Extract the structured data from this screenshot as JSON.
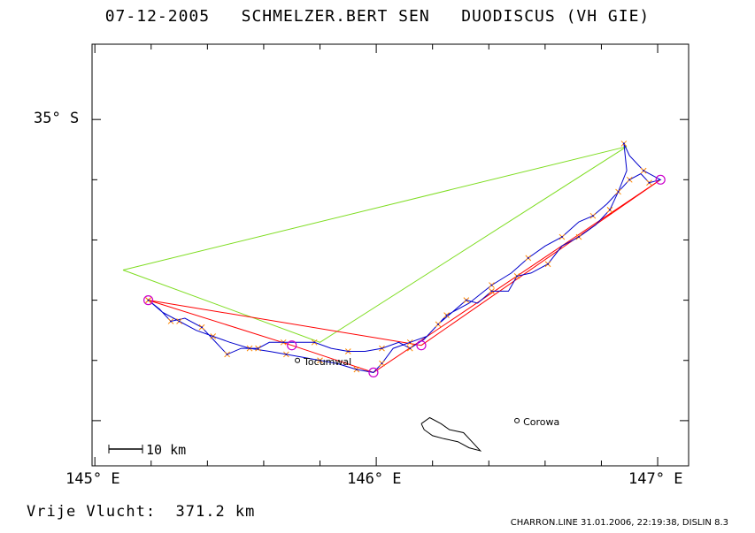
{
  "header": {
    "date": "07-12-2005",
    "pilot": "SCHMELZER.BERT SEN",
    "glider": "DUODISCUS (VH GIE)"
  },
  "axes": {
    "x_ticks": [
      {
        "value": 145,
        "label": "145° E"
      },
      {
        "value": 146,
        "label": "146° E"
      },
      {
        "value": 147,
        "label": "147° E"
      }
    ],
    "y_ticks": [
      {
        "value": -35,
        "label": "35° S"
      }
    ],
    "xlim": [
      144.99,
      147.11
    ],
    "ylim": [
      -36.15,
      -34.75
    ]
  },
  "scale_bar": {
    "label": "10 km"
  },
  "places": [
    {
      "name": "Tocumwal",
      "lon": 145.72,
      "lat": -35.8
    },
    {
      "name": "Corowa",
      "lon": 146.5,
      "lat": -36.0
    }
  ],
  "task_line": {
    "color": "#7fdd22",
    "points": [
      [
        145.1,
        -35.5
      ],
      [
        146.89,
        -35.09
      ],
      [
        145.8,
        -35.74
      ],
      [
        145.1,
        -35.5
      ]
    ]
  },
  "flight_lines": {
    "color": "#ff0000",
    "points": [
      [
        145.19,
        -35.6
      ],
      [
        146.16,
        -35.75
      ],
      [
        147.01,
        -35.2
      ],
      [
        145.99,
        -35.84
      ],
      [
        145.7,
        -35.75
      ],
      [
        145.19,
        -35.6
      ]
    ]
  },
  "turnpoints": [
    [
      145.19,
      -35.6
    ],
    [
      146.16,
      -35.75
    ],
    [
      147.01,
      -35.2
    ],
    [
      145.99,
      -35.84
    ],
    [
      145.7,
      -35.75
    ]
  ],
  "track": {
    "color": "#0000cc",
    "points": [
      [
        145.19,
        -35.6
      ],
      [
        145.23,
        -35.63
      ],
      [
        145.27,
        -35.67
      ],
      [
        145.32,
        -35.66
      ],
      [
        145.38,
        -35.69
      ],
      [
        145.42,
        -35.73
      ],
      [
        145.47,
        -35.78
      ],
      [
        145.52,
        -35.76
      ],
      [
        145.58,
        -35.76
      ],
      [
        145.62,
        -35.74
      ],
      [
        145.67,
        -35.74
      ],
      [
        145.72,
        -35.74
      ],
      [
        145.78,
        -35.74
      ],
      [
        145.84,
        -35.76
      ],
      [
        145.9,
        -35.77
      ],
      [
        145.96,
        -35.77
      ],
      [
        146.02,
        -35.76
      ],
      [
        146.08,
        -35.74
      ],
      [
        146.12,
        -35.76
      ],
      [
        146.17,
        -35.73
      ],
      [
        146.22,
        -35.68
      ],
      [
        146.27,
        -35.64
      ],
      [
        146.32,
        -35.6
      ],
      [
        146.36,
        -35.61
      ],
      [
        146.41,
        -35.57
      ],
      [
        146.47,
        -35.57
      ],
      [
        146.5,
        -35.52
      ],
      [
        146.55,
        -35.51
      ],
      [
        146.61,
        -35.48
      ],
      [
        146.66,
        -35.42
      ],
      [
        146.72,
        -35.39
      ],
      [
        146.78,
        -35.35
      ],
      [
        146.83,
        -35.3
      ],
      [
        146.86,
        -35.24
      ],
      [
        146.9,
        -35.2
      ],
      [
        146.94,
        -35.18
      ],
      [
        146.97,
        -35.21
      ],
      [
        147.01,
        -35.2
      ],
      [
        146.95,
        -35.17
      ],
      [
        146.9,
        -35.12
      ],
      [
        146.88,
        -35.08
      ],
      [
        146.89,
        -35.17
      ],
      [
        146.86,
        -35.24
      ],
      [
        146.82,
        -35.28
      ],
      [
        146.77,
        -35.32
      ],
      [
        146.72,
        -35.34
      ],
      [
        146.66,
        -35.39
      ],
      [
        146.6,
        -35.42
      ],
      [
        146.54,
        -35.46
      ],
      [
        146.48,
        -35.51
      ],
      [
        146.41,
        -35.55
      ],
      [
        146.33,
        -35.61
      ],
      [
        146.25,
        -35.65
      ],
      [
        146.18,
        -35.72
      ],
      [
        146.12,
        -35.74
      ],
      [
        146.06,
        -35.76
      ],
      [
        146.02,
        -35.81
      ],
      [
        145.99,
        -35.84
      ],
      [
        145.93,
        -35.83
      ],
      [
        145.86,
        -35.81
      ],
      [
        145.8,
        -35.8
      ],
      [
        145.74,
        -35.79
      ],
      [
        145.68,
        -35.78
      ],
      [
        145.62,
        -35.77
      ],
      [
        145.55,
        -35.76
      ],
      [
        145.48,
        -35.74
      ],
      [
        145.42,
        -35.72
      ],
      [
        145.36,
        -35.7
      ],
      [
        145.3,
        -35.67
      ],
      [
        145.24,
        -35.64
      ],
      [
        145.19,
        -35.6
      ]
    ]
  },
  "river_outline": {
    "points": [
      [
        146.16,
        -36.01
      ],
      [
        146.19,
        -35.99
      ],
      [
        146.23,
        -36.01
      ],
      [
        146.26,
        -36.03
      ],
      [
        146.31,
        -36.04
      ],
      [
        146.34,
        -36.07
      ],
      [
        146.37,
        -36.1
      ],
      [
        146.33,
        -36.09
      ],
      [
        146.29,
        -36.07
      ],
      [
        146.24,
        -36.06
      ],
      [
        146.2,
        -36.05
      ],
      [
        146.17,
        -36.03
      ],
      [
        146.16,
        -36.01
      ]
    ]
  },
  "footer": {
    "free_flight": "Vrije Vlucht:  371.2 km",
    "credits": "CHARRON.LINE 31.01.2006, 22:19:38, DISLIN 8.3"
  }
}
